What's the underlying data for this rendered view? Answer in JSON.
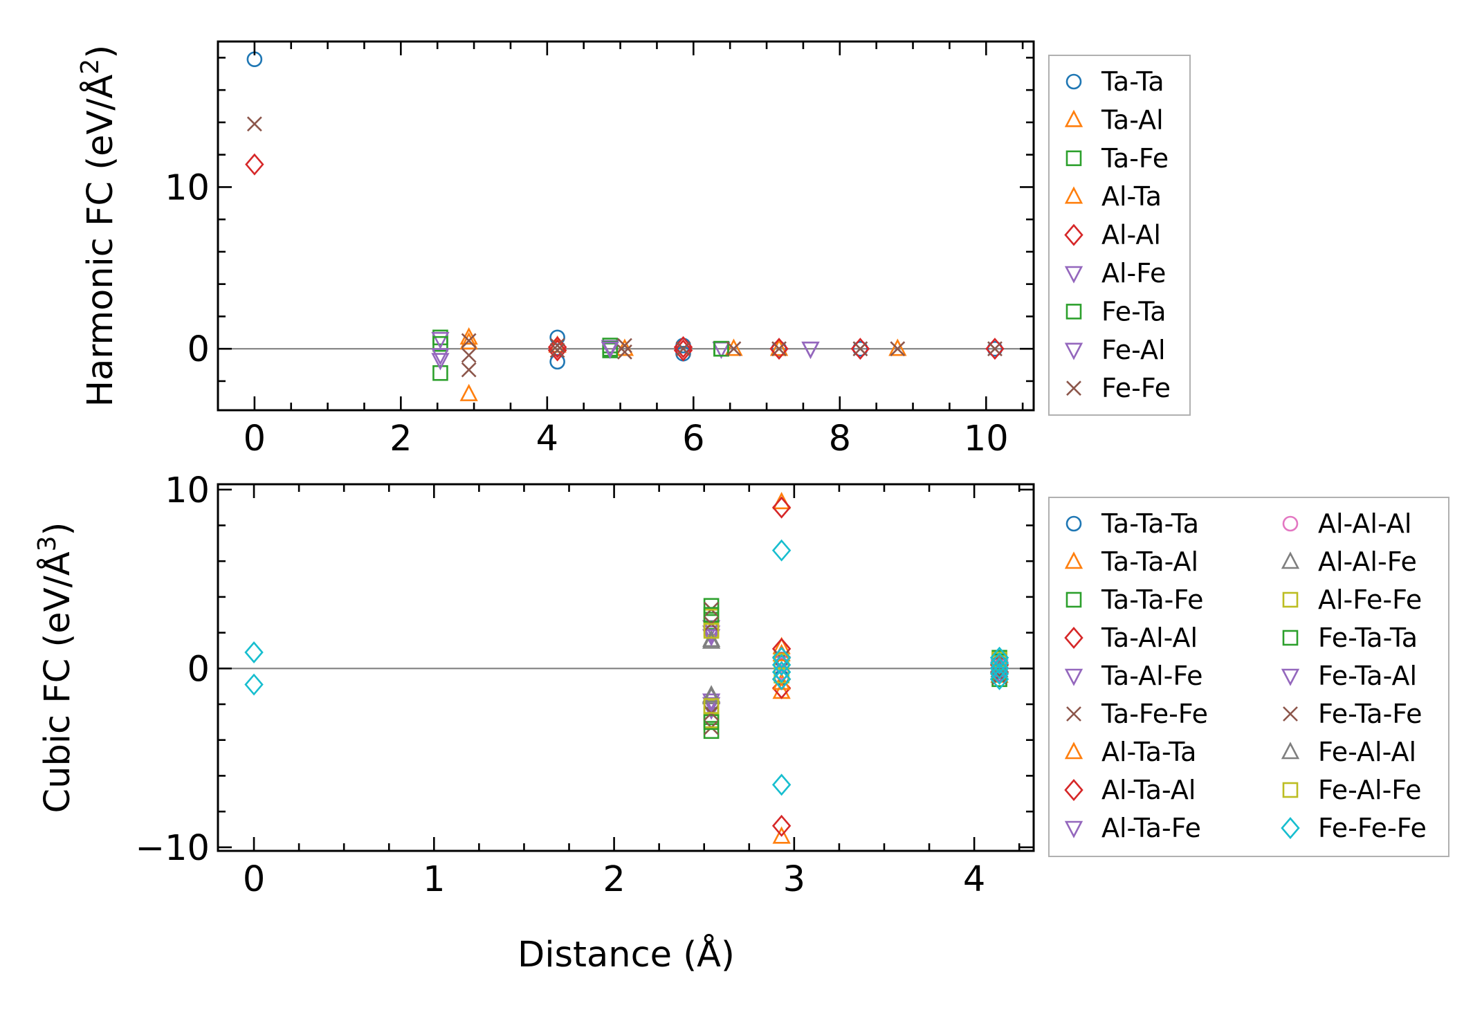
{
  "figure": {
    "shared_xlabel": "Distance (Å)"
  },
  "chart_data": [
    {
      "type": "scatter",
      "title": "",
      "ylabel": "Harmonic FC (eV/Å",
      "ylabel_sup": "2",
      "ylabel_close": ")",
      "xlim": [
        -0.5,
        10.65
      ],
      "ylim": [
        -3.8,
        19
      ],
      "xticks": [
        0,
        2,
        4,
        6,
        8,
        10
      ],
      "yticks": [
        0,
        10
      ],
      "grid": false,
      "zero_line": true,
      "legend_position": "outside-right",
      "series": [
        {
          "name": "Ta-Ta",
          "marker": "circle",
          "color": "#1f77b4",
          "points": [
            [
              0,
              17.9
            ],
            [
              4.14,
              0.7
            ],
            [
              4.14,
              -0.8
            ],
            [
              5.86,
              0.2
            ],
            [
              5.86,
              -0.3
            ],
            [
              7.17,
              0
            ],
            [
              8.28,
              0
            ],
            [
              10.12,
              0
            ]
          ]
        },
        {
          "name": "Ta-Al",
          "marker": "triangle-up",
          "color": "#ff7f0e",
          "points": [
            [
              2.93,
              0.7
            ],
            [
              2.93,
              -2.8
            ],
            [
              4.14,
              0.2
            ],
            [
              6.55,
              0
            ],
            [
              8.79,
              0
            ]
          ]
        },
        {
          "name": "Ta-Fe",
          "marker": "square",
          "color": "#2ca02c",
          "points": [
            [
              2.54,
              0.7
            ],
            [
              2.54,
              -1.5
            ],
            [
              4.86,
              0.2
            ],
            [
              4.86,
              -0.1
            ],
            [
              6.38,
              0
            ]
          ]
        },
        {
          "name": "Al-Ta",
          "marker": "triangle-up",
          "color": "#ff7f0e",
          "points": [
            [
              2.93,
              0.4
            ],
            [
              5.06,
              0
            ],
            [
              7.17,
              0
            ]
          ]
        },
        {
          "name": "Al-Al",
          "marker": "diamond",
          "color": "#d62728",
          "points": [
            [
              0,
              11.4
            ],
            [
              4.14,
              0.1
            ],
            [
              4.14,
              -0.1
            ],
            [
              5.86,
              0.1
            ],
            [
              5.86,
              -0.1
            ],
            [
              7.17,
              0
            ],
            [
              8.28,
              0
            ],
            [
              10.12,
              0
            ]
          ]
        },
        {
          "name": "Al-Fe",
          "marker": "triangle-down",
          "color": "#9467bd",
          "points": [
            [
              2.54,
              0.6
            ],
            [
              2.54,
              -0.7
            ],
            [
              4.86,
              0.1
            ],
            [
              6.38,
              0
            ],
            [
              7.6,
              0
            ]
          ]
        },
        {
          "name": "Fe-Ta",
          "marker": "square",
          "color": "#2ca02c",
          "points": [
            [
              2.54,
              0.3
            ],
            [
              4.86,
              0
            ],
            [
              6.38,
              0
            ]
          ]
        },
        {
          "name": "Fe-Al",
          "marker": "triangle-down",
          "color": "#9467bd",
          "points": [
            [
              2.54,
              -0.4
            ],
            [
              4.86,
              0
            ],
            [
              7.6,
              0
            ]
          ]
        },
        {
          "name": "Fe-Fe",
          "marker": "x",
          "color": "#8c564b",
          "points": [
            [
              0,
              13.9
            ],
            [
              2.93,
              0.5
            ],
            [
              2.93,
              -0.4
            ],
            [
              2.93,
              -1.3
            ],
            [
              4.14,
              0.2
            ],
            [
              4.14,
              -0.1
            ],
            [
              5.06,
              0.2
            ],
            [
              5.06,
              -0.2
            ],
            [
              5.86,
              0
            ],
            [
              6.55,
              0
            ],
            [
              7.17,
              0
            ],
            [
              8.28,
              0
            ],
            [
              8.79,
              0
            ],
            [
              10.12,
              0
            ]
          ]
        }
      ]
    },
    {
      "type": "scatter",
      "title": "",
      "xlabel": "Distance (Å)",
      "ylabel": "Cubic FC (eV/Å",
      "ylabel_sup": "3",
      "ylabel_close": ")",
      "xlim": [
        -0.2,
        4.33
      ],
      "ylim": [
        -10.2,
        10.3
      ],
      "xticks": [
        0,
        1,
        2,
        3,
        4
      ],
      "yticks": [
        -10,
        0,
        10
      ],
      "yticklabels": [
        "−10",
        "0",
        "10"
      ],
      "grid": false,
      "zero_line": true,
      "legend_position": "outside-right",
      "series": [
        {
          "name": "Ta-Ta-Ta",
          "marker": "circle",
          "color": "#1f77b4",
          "points": [
            [
              2.93,
              0.5
            ],
            [
              2.93,
              -0.5
            ],
            [
              4.14,
              0.3
            ],
            [
              4.14,
              -0.3
            ]
          ]
        },
        {
          "name": "Ta-Ta-Al",
          "marker": "triangle-up",
          "color": "#ff7f0e",
          "points": [
            [
              2.93,
              9.3
            ],
            [
              2.93,
              -9.4
            ],
            [
              2.93,
              1.2
            ],
            [
              2.93,
              -1.3
            ],
            [
              4.14,
              0.4
            ],
            [
              4.14,
              -0.4
            ]
          ]
        },
        {
          "name": "Ta-Ta-Fe",
          "marker": "square",
          "color": "#2ca02c",
          "points": [
            [
              2.54,
              3.5
            ],
            [
              2.54,
              2.6
            ],
            [
              2.54,
              -2.6
            ],
            [
              2.54,
              -3.5
            ],
            [
              4.14,
              0.6
            ],
            [
              4.14,
              -0.6
            ]
          ]
        },
        {
          "name": "Ta-Al-Al",
          "marker": "diamond",
          "color": "#d62728",
          "points": [
            [
              2.93,
              9.0
            ],
            [
              2.93,
              -8.8
            ],
            [
              2.93,
              1.1
            ],
            [
              2.93,
              -1.1
            ],
            [
              4.14,
              0.2
            ]
          ]
        },
        {
          "name": "Ta-Al-Fe",
          "marker": "triangle-down",
          "color": "#9467bd",
          "points": [
            [
              2.54,
              2.0
            ],
            [
              2.54,
              -2.0
            ],
            [
              2.93,
              0.3
            ],
            [
              4.14,
              0.1
            ]
          ]
        },
        {
          "name": "Ta-Fe-Fe",
          "marker": "x",
          "color": "#8c564b",
          "points": [
            [
              2.54,
              3.3
            ],
            [
              2.54,
              -3.3
            ],
            [
              2.93,
              0.6
            ],
            [
              4.14,
              0.5
            ],
            [
              4.14,
              -0.5
            ]
          ]
        },
        {
          "name": "Al-Ta-Ta",
          "marker": "triangle-up",
          "color": "#ff7f0e",
          "points": [
            [
              2.93,
              0.8
            ],
            [
              2.93,
              -0.8
            ],
            [
              4.14,
              0.2
            ]
          ]
        },
        {
          "name": "Al-Ta-Al",
          "marker": "diamond",
          "color": "#d62728",
          "points": [
            [
              2.93,
              0.6
            ],
            [
              2.93,
              -0.6
            ],
            [
              4.14,
              -0.2
            ]
          ]
        },
        {
          "name": "Al-Ta-Fe",
          "marker": "triangle-down",
          "color": "#9467bd",
          "points": [
            [
              2.54,
              2.3
            ],
            [
              2.54,
              -2.3
            ],
            [
              4.14,
              0
            ]
          ]
        },
        {
          "name": "Al-Al-Al",
          "marker": "circle",
          "color": "#e377c2",
          "points": [
            [
              2.93,
              0.2
            ],
            [
              2.93,
              -0.2
            ],
            [
              4.14,
              0.1
            ]
          ]
        },
        {
          "name": "Al-Al-Fe",
          "marker": "triangle-up",
          "color": "#7f7f7f",
          "points": [
            [
              2.54,
              1.6
            ],
            [
              2.54,
              -1.6
            ],
            [
              4.14,
              -0.1
            ]
          ]
        },
        {
          "name": "Al-Fe-Fe",
          "marker": "square",
          "color": "#bcbd22",
          "points": [
            [
              2.54,
              2.9
            ],
            [
              2.54,
              2.2
            ],
            [
              2.54,
              -2.2
            ],
            [
              2.54,
              -2.9
            ],
            [
              2.93,
              0.4
            ],
            [
              4.14,
              0.3
            ]
          ]
        },
        {
          "name": "Fe-Ta-Ta",
          "marker": "square",
          "color": "#2ca02c",
          "points": [
            [
              2.54,
              3.0
            ],
            [
              2.54,
              -3.0
            ],
            [
              4.14,
              0.4
            ]
          ]
        },
        {
          "name": "Fe-Ta-Al",
          "marker": "triangle-down",
          "color": "#9467bd",
          "points": [
            [
              2.54,
              1.8
            ],
            [
              2.54,
              -1.8
            ],
            [
              4.14,
              -0.3
            ]
          ]
        },
        {
          "name": "Fe-Ta-Fe",
          "marker": "x",
          "color": "#8c564b",
          "points": [
            [
              2.54,
              2.5
            ],
            [
              2.54,
              -2.5
            ],
            [
              4.14,
              -0.4
            ]
          ]
        },
        {
          "name": "Fe-Al-Al",
          "marker": "triangle-up",
          "color": "#7f7f7f",
          "points": [
            [
              2.54,
              1.5
            ],
            [
              2.54,
              -1.5
            ],
            [
              4.14,
              0.2
            ]
          ]
        },
        {
          "name": "Fe-Al-Fe",
          "marker": "square",
          "color": "#bcbd22",
          "points": [
            [
              2.54,
              2.1
            ],
            [
              2.54,
              -2.1
            ],
            [
              2.93,
              -0.4
            ],
            [
              4.14,
              0.5
            ]
          ]
        },
        {
          "name": "Fe-Fe-Fe",
          "marker": "diamond",
          "color": "#17becf",
          "points": [
            [
              0,
              0.9
            ],
            [
              0,
              -0.9
            ],
            [
              2.93,
              6.6
            ],
            [
              2.93,
              -6.5
            ],
            [
              2.93,
              0.6
            ],
            [
              2.93,
              0.2
            ],
            [
              2.93,
              -0.2
            ],
            [
              2.93,
              -0.6
            ],
            [
              4.14,
              0.6
            ],
            [
              4.14,
              0.3
            ],
            [
              4.14,
              0
            ],
            [
              4.14,
              -0.3
            ],
            [
              4.14,
              -0.6
            ]
          ]
        }
      ]
    }
  ]
}
